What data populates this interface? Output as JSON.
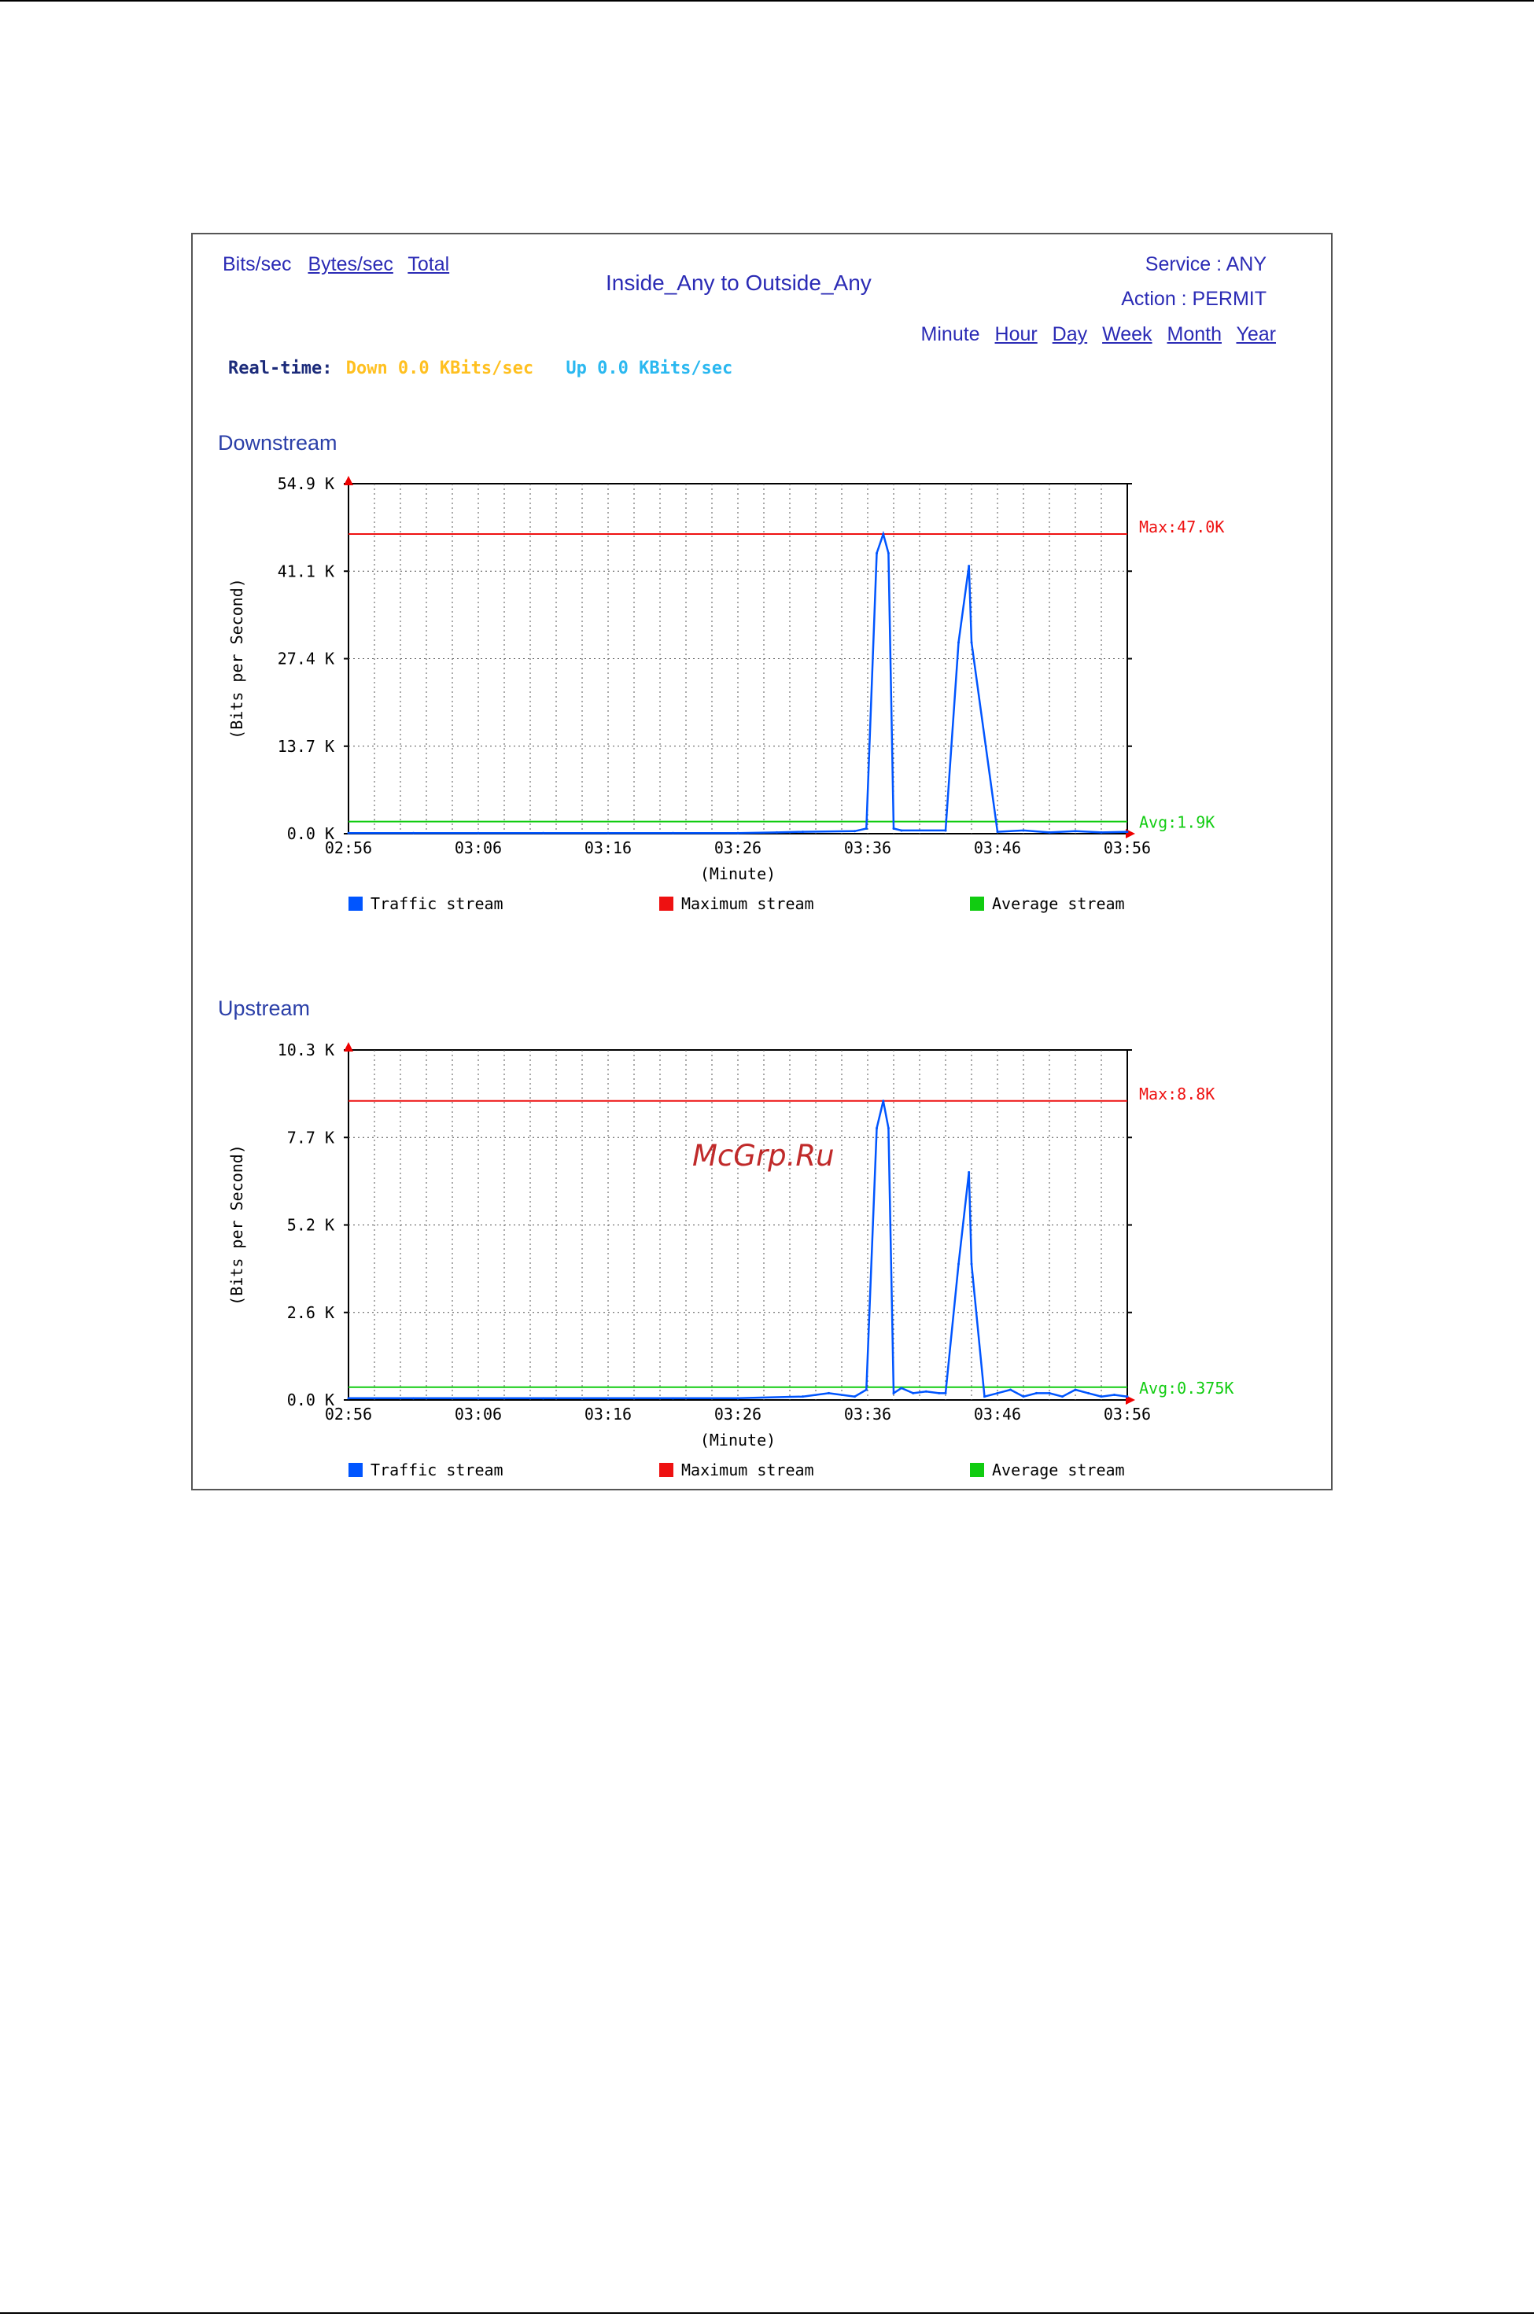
{
  "header": {
    "units": {
      "selected": "Bits/sec",
      "links": [
        "Bytes/sec",
        "Total"
      ]
    },
    "title": "Inside_Any to Outside_Any",
    "service": "Service : ANY",
    "action": "Action : PERMIT",
    "periods": {
      "selected": "Minute",
      "links": [
        "Hour",
        "Day",
        "Week",
        "Month",
        "Year"
      ]
    },
    "realtime": {
      "label": "Real-time:",
      "down": "Down 0.0 KBits/sec",
      "up": "Up 0.0 KBits/sec"
    }
  },
  "watermark": "McGrp.Ru",
  "colors": {
    "traffic": "#0055ff",
    "max": "#ee1111",
    "avg": "#11cc11",
    "grid": "#555555",
    "axis": "#000000"
  },
  "chart_data": [
    {
      "type": "line",
      "title": "Downstream",
      "xlabel": "(Minute)",
      "ylabel": "(Bits per Second)",
      "x_ticks": [
        "02:56",
        "03:06",
        "03:16",
        "03:26",
        "03:36",
        "03:46",
        "03:56"
      ],
      "y_ticks": [
        "0.0 K",
        "13.7 K",
        "27.4 K",
        "41.1 K",
        "54.9 K"
      ],
      "ylim": [
        0,
        54.9
      ],
      "y_unit": "K",
      "x_minutes_range": [
        0,
        60
      ],
      "grid": true,
      "legend": [
        "Traffic stream",
        "Maximum stream",
        "Average stream"
      ],
      "max_value": 47.0,
      "max_label": "Max:47.0K",
      "avg_value": 1.9,
      "avg_label": "Avg:1.9K",
      "series": [
        {
          "name": "Traffic stream",
          "x": [
            0,
            5,
            10,
            15,
            20,
            25,
            30,
            33,
            35,
            39,
            39.9,
            40.7,
            41.2,
            41.6,
            42,
            42.6,
            46,
            47.0,
            47.8,
            48,
            50,
            52,
            54,
            56,
            58,
            60
          ],
          "y": [
            0.1,
            0.1,
            0.1,
            0.1,
            0.1,
            0.1,
            0.1,
            0.2,
            0.3,
            0.4,
            0.8,
            44,
            47.0,
            44,
            0.8,
            0.5,
            0.5,
            30,
            42.0,
            30,
            0.3,
            0.5,
            0.2,
            0.4,
            0.2,
            0.3
          ]
        }
      ]
    },
    {
      "type": "line",
      "title": "Upstream",
      "xlabel": "(Minute)",
      "ylabel": "(Bits per Second)",
      "x_ticks": [
        "02:56",
        "03:06",
        "03:16",
        "03:26",
        "03:36",
        "03:46",
        "03:56"
      ],
      "y_ticks": [
        "0.0 K",
        "2.6 K",
        "5.2 K",
        "7.7 K",
        "10.3 K"
      ],
      "ylim": [
        0,
        10.3
      ],
      "y_unit": "K",
      "x_minutes_range": [
        0,
        60
      ],
      "grid": true,
      "legend": [
        "Traffic stream",
        "Maximum stream",
        "Average stream"
      ],
      "max_value": 8.8,
      "max_label": "Max:8.8K",
      "avg_value": 0.375,
      "avg_label": "Avg:0.375K",
      "series": [
        {
          "name": "Traffic stream",
          "x": [
            0,
            5,
            10,
            15,
            20,
            25,
            30,
            35,
            37,
            39,
            39.9,
            40.7,
            41.2,
            41.6,
            42,
            42.6,
            43.5,
            44.5,
            45.5,
            46,
            47.0,
            47.8,
            48,
            49,
            50,
            51,
            52,
            53,
            54,
            55,
            56,
            57,
            58,
            59,
            60
          ],
          "y": [
            0.05,
            0.05,
            0.05,
            0.05,
            0.05,
            0.05,
            0.05,
            0.1,
            0.2,
            0.1,
            0.3,
            8.0,
            8.8,
            8.0,
            0.2,
            0.35,
            0.2,
            0.25,
            0.2,
            0.2,
            4.0,
            6.7,
            4.0,
            0.1,
            0.2,
            0.3,
            0.1,
            0.2,
            0.2,
            0.1,
            0.3,
            0.2,
            0.1,
            0.15,
            0.1
          ]
        }
      ]
    }
  ]
}
